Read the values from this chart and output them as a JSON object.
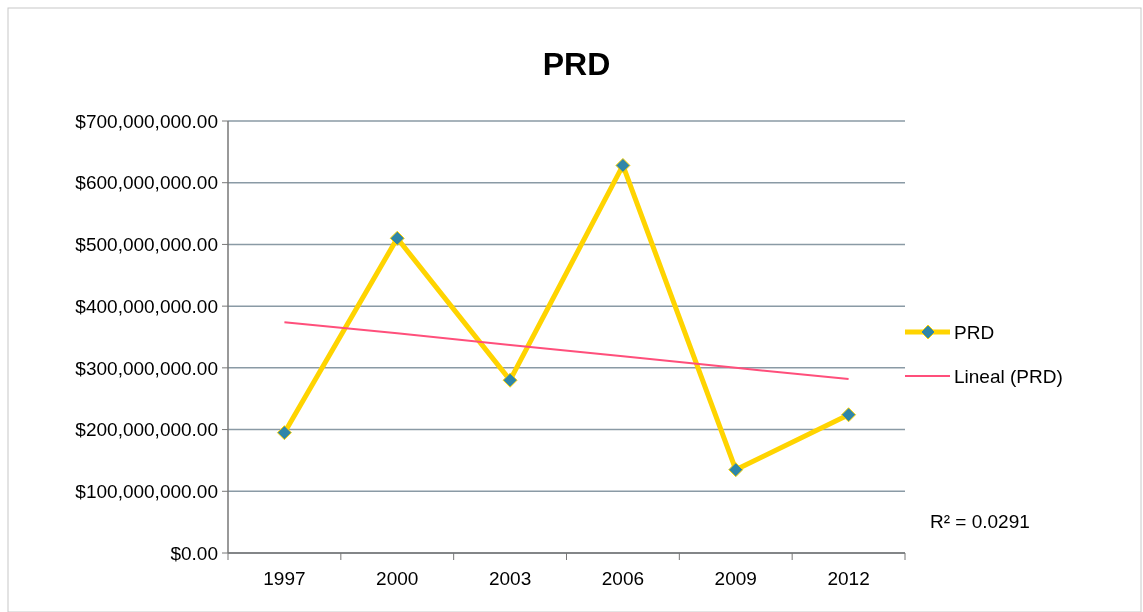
{
  "chart_data": {
    "type": "line",
    "title": "PRD",
    "categories": [
      "1997",
      "2000",
      "2003",
      "2006",
      "2009",
      "2012"
    ],
    "series": [
      {
        "name": "PRD",
        "color": "#ffd400",
        "values": [
          195000000,
          510000000,
          280000000,
          628000000,
          135000000,
          224000000
        ],
        "marker": "diamond"
      },
      {
        "name": "Lineal (PRD)",
        "color": "#ff4f7b",
        "type": "line",
        "values": [
          374000000,
          356000000,
          337000000,
          319000000,
          300000000,
          282000000
        ],
        "marker": "none"
      }
    ],
    "ylim": [
      0,
      700000000
    ],
    "yticks": [
      {
        "value": 0,
        "label": "$0.00"
      },
      {
        "value": 100000000,
        "label": "$100,000,000.00"
      },
      {
        "value": 200000000,
        "label": "$200,000,000.00"
      },
      {
        "value": 300000000,
        "label": "$300,000,000.00"
      },
      {
        "value": 400000000,
        "label": "$400,000,000.00"
      },
      {
        "value": 500000000,
        "label": "$500,000,000.00"
      },
      {
        "value": 600000000,
        "label": "$600,000,000.00"
      },
      {
        "value": 700000000,
        "label": "$700,000,000.00"
      }
    ],
    "grid": "y",
    "legend": "right",
    "annotations": [
      "R² = 0.0291"
    ]
  }
}
